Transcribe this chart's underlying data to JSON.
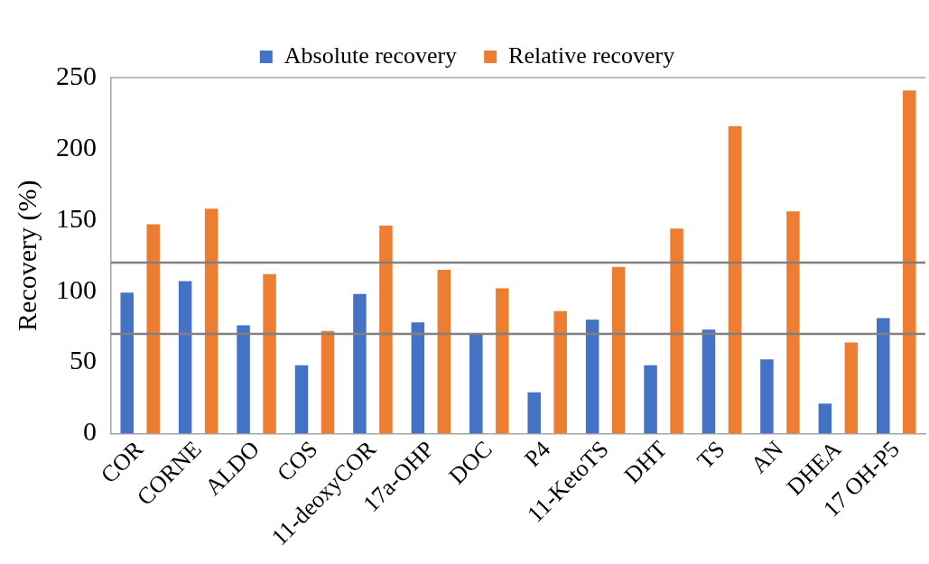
{
  "chart_data": {
    "type": "bar",
    "ylabel": "Recovery (%)",
    "categories": [
      "COR",
      "CORNE",
      "ALDO",
      "COS",
      "11-deoxyCOR",
      "17a-OHP",
      "DOC",
      "P4",
      "11-KetoTS",
      "DHT",
      "TS",
      "AN",
      "DHEA",
      "17 OH-P5"
    ],
    "series": [
      {
        "name": "Absolute recovery",
        "color": "#4472c4",
        "values": [
          99,
          107,
          76,
          48,
          98,
          78,
          70,
          29,
          80,
          48,
          73,
          52,
          21,
          81
        ]
      },
      {
        "name": "Relative recovery",
        "color": "#ed7d31",
        "values": [
          147,
          158,
          112,
          72,
          146,
          115,
          102,
          86,
          117,
          144,
          216,
          156,
          64,
          241
        ]
      }
    ],
    "ylim": [
      0,
      250
    ],
    "yticks": [
      0,
      50,
      100,
      150,
      200,
      250
    ],
    "grid": false,
    "legend": "top",
    "ref_lines": [
      {
        "axis": "y",
        "value": 120,
        "color": "#808080"
      },
      {
        "axis": "y",
        "value": 70,
        "color": "#808080"
      }
    ]
  }
}
